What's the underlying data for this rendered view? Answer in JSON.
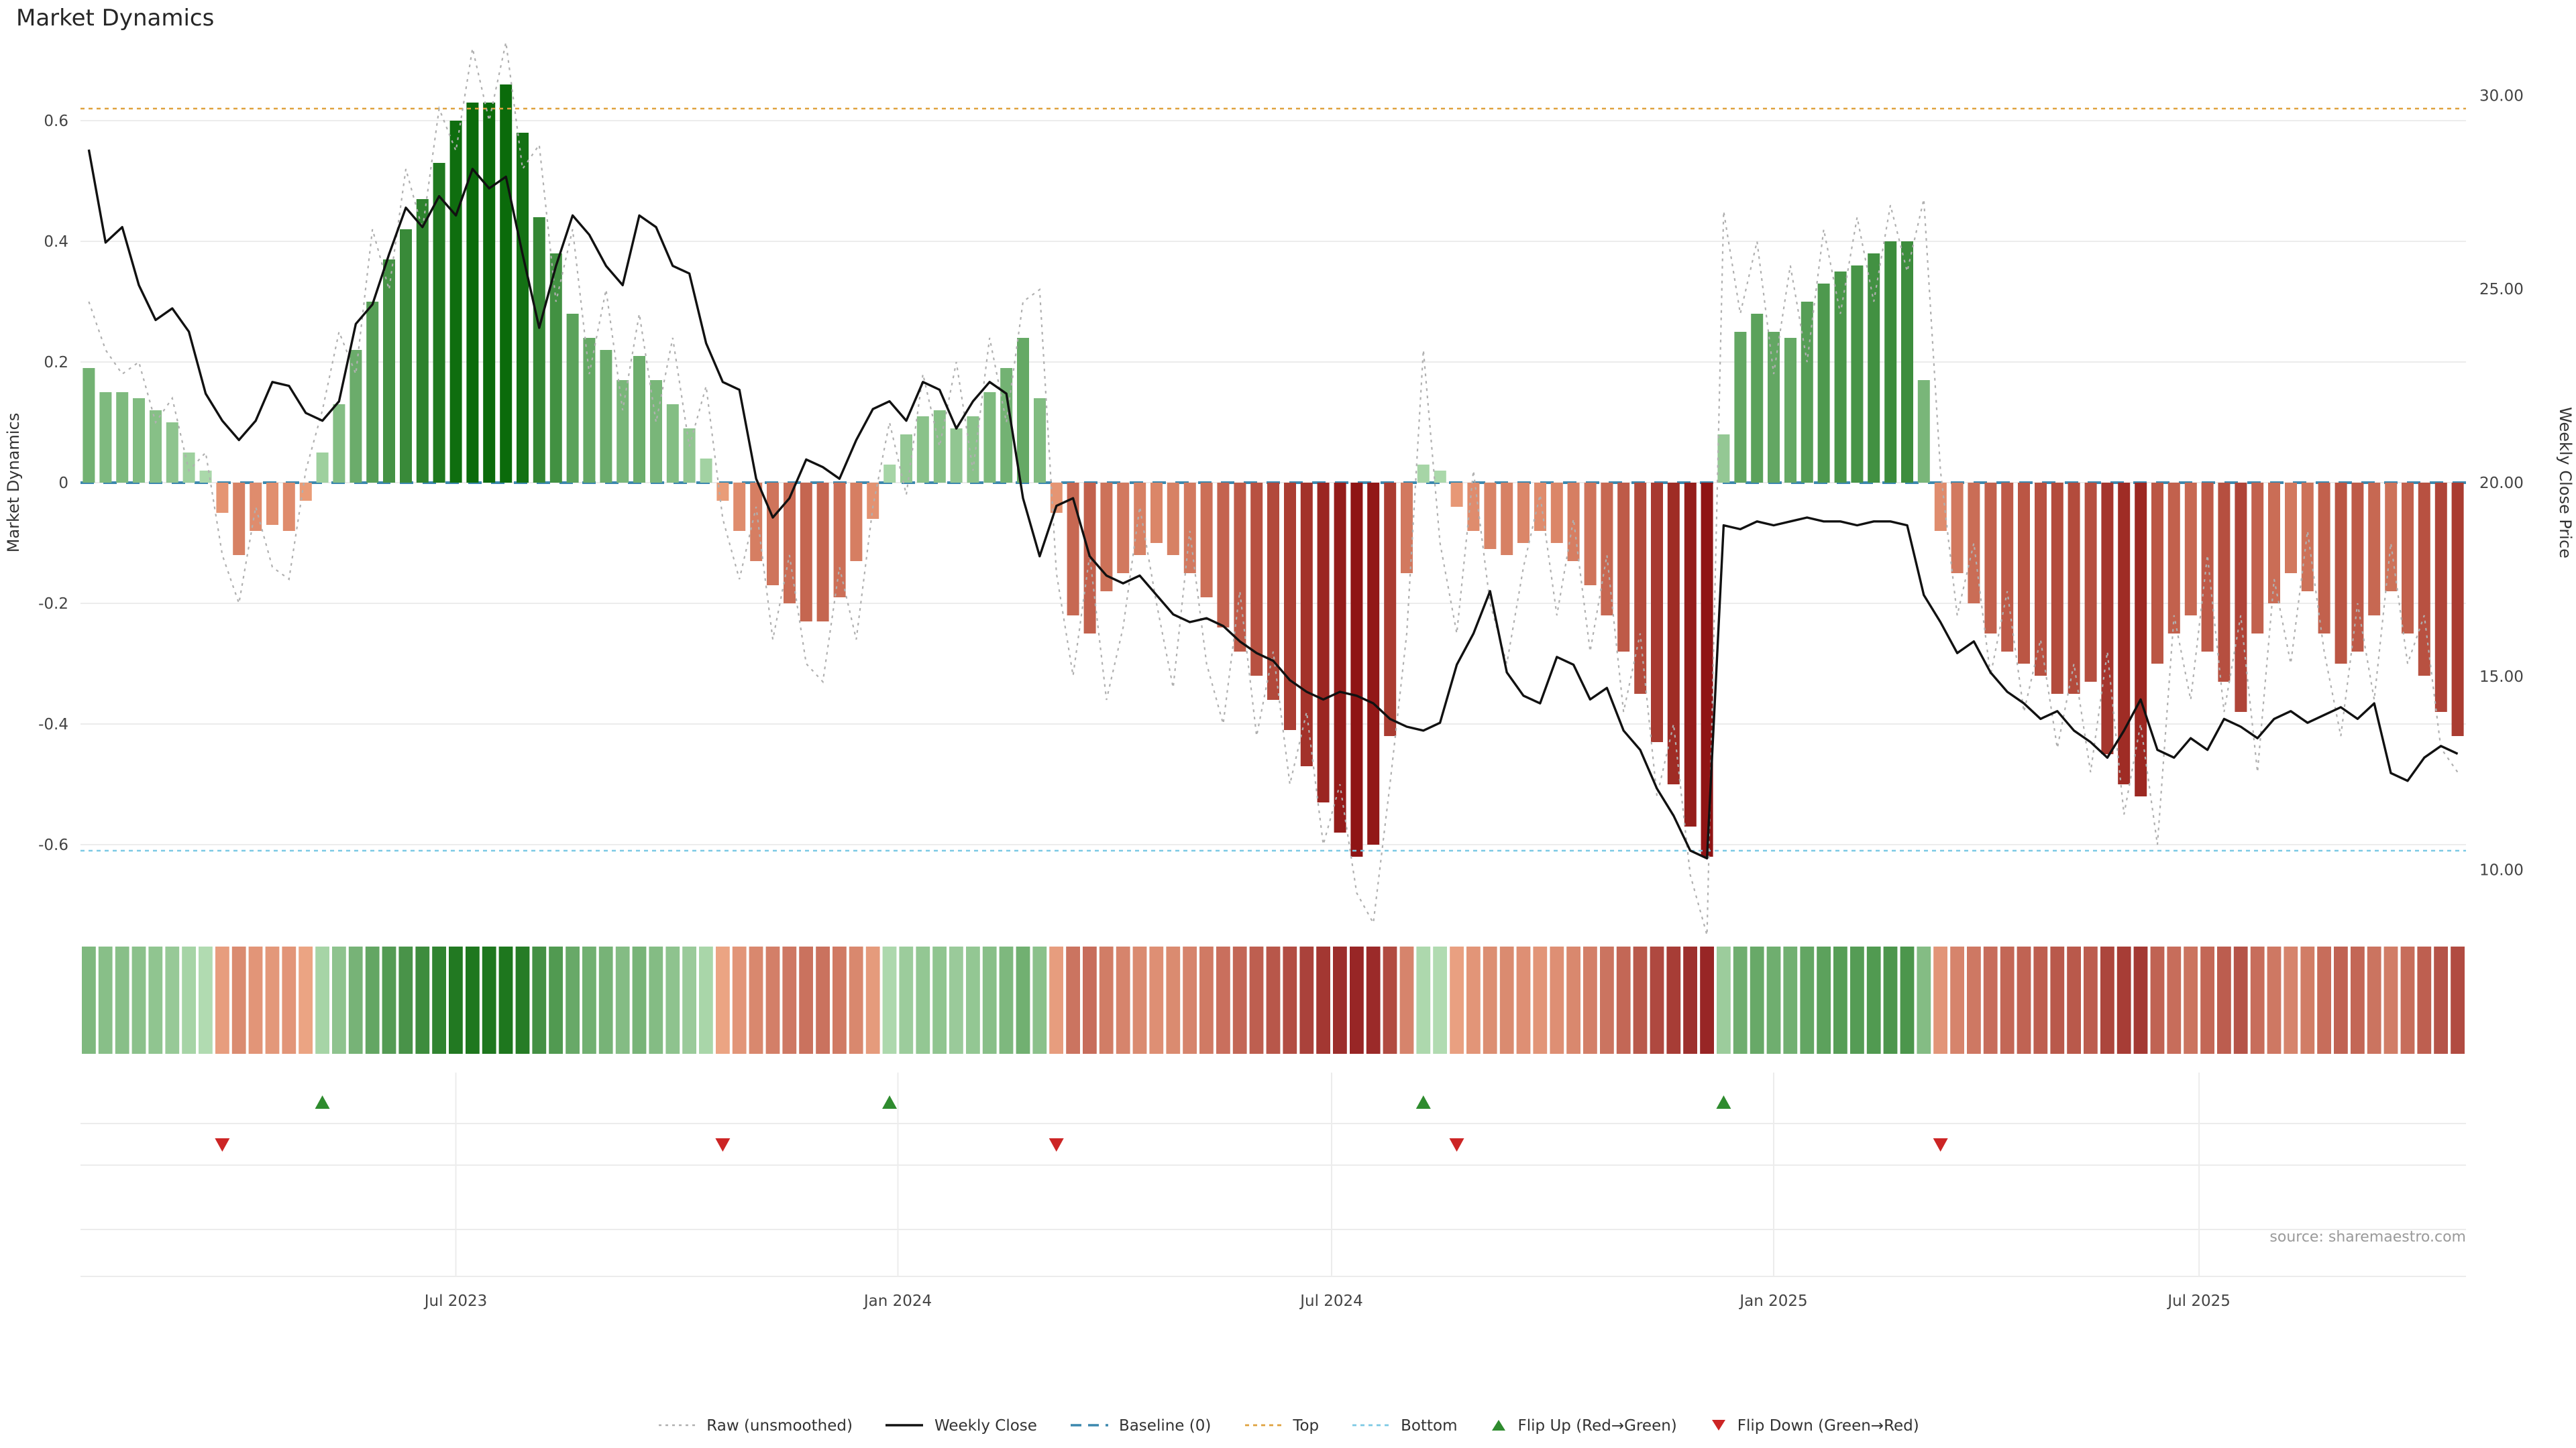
{
  "title": "Market Dynamics",
  "source_note": "source: sharemaestro.com",
  "axes": {
    "left_label": "Market Dynamics",
    "right_label": "Weekly Close Price",
    "left_ticks": [
      {
        "label": "0.6",
        "value": 0.6
      },
      {
        "label": "0.4",
        "value": 0.4
      },
      {
        "label": "0.2",
        "value": 0.2
      },
      {
        "label": "0",
        "value": 0
      },
      {
        "label": "-0.2",
        "value": -0.2
      },
      {
        "label": "-0.4",
        "value": -0.4
      },
      {
        "label": "-0.6",
        "value": -0.6
      }
    ],
    "right_ticks": [
      {
        "label": "30.00",
        "value": 30
      },
      {
        "label": "25.00",
        "value": 25
      },
      {
        "label": "20.00",
        "value": 20
      },
      {
        "label": "15.00",
        "value": 15
      },
      {
        "label": "10.00",
        "value": 10
      }
    ],
    "x_ticks": [
      {
        "label": "Jul 2023",
        "week": 22
      },
      {
        "label": "Jan 2024",
        "week": 48.5
      },
      {
        "label": "Jul 2024",
        "week": 74.5
      },
      {
        "label": "Jan 2025",
        "week": 101
      },
      {
        "label": "Jul 2025",
        "week": 126.5
      }
    ]
  },
  "colors": {
    "green_dark": "#0b6b0b",
    "green_light": "#b5dfb5",
    "red_dark": "#8f1414",
    "red_light": "#f2a982",
    "close_line": "#111111",
    "raw_line": "#b0b0b0",
    "baseline": "#3c88ae",
    "top_line": "#dfa23f",
    "bottom_line": "#7cc9e4",
    "flip_up": "#2e8b2e",
    "flip_down": "#cc2525",
    "grid": "#ececec",
    "tick_text": "#444444"
  },
  "legend": {
    "items": [
      {
        "label": "Raw (unsmoothed)",
        "swatch": "raw"
      },
      {
        "label": "Weekly Close",
        "swatch": "close"
      },
      {
        "label": "Baseline (0)",
        "swatch": "baseline"
      },
      {
        "label": "Top",
        "swatch": "top"
      },
      {
        "label": "Bottom",
        "swatch": "bottom"
      },
      {
        "label": "Flip Up (Red→Green)",
        "swatch": "flip_up"
      },
      {
        "label": "Flip Down (Green→Red)",
        "swatch": "flip_down"
      }
    ]
  },
  "chart_data": {
    "type": "bar+line",
    "title": "Market Dynamics",
    "x_unit": "week",
    "weeks_count": 143,
    "ylim_left": [
      -0.72,
      0.72
    ],
    "ylim_right": [
      8.8,
      31.2
    ],
    "grid": "horizontal",
    "thresholds": {
      "top": 0.62,
      "bottom": -0.61,
      "baseline": 0
    },
    "price_axis": {
      "dyn_zero_price": 20,
      "price_units_per_dyn": 15.58
    },
    "flip_up_weeks": [
      14,
      48,
      80,
      98
    ],
    "flip_down_weeks": [
      8,
      38,
      58,
      82,
      111
    ],
    "series": [
      {
        "name": "dynamics_smoothed",
        "type": "bar",
        "axis": "left",
        "values": [
          0.19,
          0.15,
          0.15,
          0.14,
          0.12,
          0.1,
          0.05,
          0.02,
          -0.05,
          -0.12,
          -0.08,
          -0.07,
          -0.08,
          -0.03,
          0.05,
          0.13,
          0.22,
          0.3,
          0.37,
          0.42,
          0.47,
          0.53,
          0.6,
          0.63,
          0.63,
          0.66,
          0.58,
          0.44,
          0.38,
          0.28,
          0.24,
          0.22,
          0.17,
          0.21,
          0.17,
          0.13,
          0.09,
          0.04,
          -0.03,
          -0.08,
          -0.13,
          -0.17,
          -0.2,
          -0.23,
          -0.23,
          -0.19,
          -0.13,
          -0.06,
          0.03,
          0.08,
          0.11,
          0.12,
          0.09,
          0.11,
          0.15,
          0.19,
          0.24,
          0.14,
          -0.05,
          -0.22,
          -0.25,
          -0.18,
          -0.15,
          -0.12,
          -0.1,
          -0.12,
          -0.15,
          -0.19,
          -0.24,
          -0.28,
          -0.32,
          -0.36,
          -0.41,
          -0.47,
          -0.53,
          -0.58,
          -0.62,
          -0.6,
          -0.42,
          -0.15,
          0.03,
          0.02,
          -0.04,
          -0.08,
          -0.11,
          -0.12,
          -0.1,
          -0.08,
          -0.1,
          -0.13,
          -0.17,
          -0.22,
          -0.28,
          -0.35,
          -0.43,
          -0.5,
          -0.57,
          -0.62,
          0.08,
          0.25,
          0.28,
          0.25,
          0.24,
          0.3,
          0.33,
          0.35,
          0.36,
          0.38,
          0.4,
          0.4,
          0.17,
          -0.08,
          -0.15,
          -0.2,
          -0.25,
          -0.28,
          -0.3,
          -0.32,
          -0.35,
          -0.35,
          -0.33,
          -0.45,
          -0.5,
          -0.52,
          -0.3,
          -0.25,
          -0.22,
          -0.28,
          -0.33,
          -0.38,
          -0.25,
          -0.2,
          -0.15,
          -0.18,
          -0.25,
          -0.3,
          -0.28,
          -0.22,
          -0.18,
          -0.25,
          -0.32,
          -0.38,
          -0.42
        ]
      },
      {
        "name": "raw_unsmoothed",
        "type": "line",
        "axis": "left",
        "values": [
          0.3,
          0.22,
          0.18,
          0.2,
          0.1,
          0.14,
          0.02,
          0.05,
          -0.12,
          -0.2,
          -0.04,
          -0.14,
          -0.16,
          0.02,
          0.12,
          0.25,
          0.18,
          0.42,
          0.32,
          0.52,
          0.42,
          0.62,
          0.55,
          0.72,
          0.6,
          0.73,
          0.52,
          0.56,
          0.3,
          0.42,
          0.18,
          0.32,
          0.12,
          0.28,
          0.1,
          0.24,
          0.06,
          0.16,
          -0.06,
          -0.16,
          -0.04,
          -0.26,
          -0.12,
          -0.3,
          -0.33,
          -0.14,
          -0.26,
          -0.04,
          0.1,
          -0.02,
          0.18,
          0.06,
          0.2,
          0.02,
          0.24,
          0.1,
          0.3,
          0.32,
          -0.15,
          -0.32,
          -0.12,
          -0.36,
          -0.24,
          -0.04,
          -0.2,
          -0.34,
          -0.08,
          -0.3,
          -0.4,
          -0.18,
          -0.42,
          -0.28,
          -0.5,
          -0.38,
          -0.6,
          -0.5,
          -0.68,
          -0.73,
          -0.5,
          -0.25,
          0.22,
          -0.1,
          -0.25,
          0.02,
          -0.2,
          -0.3,
          -0.14,
          -0.02,
          -0.22,
          -0.06,
          -0.28,
          -0.12,
          -0.38,
          -0.25,
          -0.52,
          -0.4,
          -0.65,
          -0.75,
          0.45,
          0.28,
          0.4,
          0.18,
          0.36,
          0.2,
          0.42,
          0.28,
          0.44,
          0.3,
          0.46,
          0.35,
          0.47,
          0.02,
          -0.22,
          -0.1,
          -0.32,
          -0.18,
          -0.38,
          -0.26,
          -0.44,
          -0.3,
          -0.48,
          -0.28,
          -0.55,
          -0.4,
          -0.6,
          -0.22,
          -0.36,
          -0.12,
          -0.38,
          -0.22,
          -0.48,
          -0.16,
          -0.3,
          -0.08,
          -0.28,
          -0.42,
          -0.2,
          -0.36,
          -0.1,
          -0.3,
          -0.22,
          -0.44,
          -0.48
        ]
      },
      {
        "name": "weekly_close",
        "type": "line",
        "axis": "right",
        "values": [
          28.6,
          26.2,
          26.6,
          25.1,
          24.2,
          24.5,
          23.9,
          22.3,
          21.6,
          21.1,
          21.6,
          22.6,
          22.5,
          21.8,
          21.6,
          22.1,
          24.1,
          24.6,
          25.9,
          27.1,
          26.6,
          27.4,
          26.9,
          28.1,
          27.6,
          27.9,
          25.9,
          24.0,
          25.6,
          26.9,
          26.4,
          25.6,
          25.1,
          26.9,
          26.6,
          25.6,
          25.4,
          23.6,
          22.6,
          22.4,
          20.1,
          19.1,
          19.6,
          20.6,
          20.4,
          20.1,
          21.1,
          21.9,
          22.1,
          21.6,
          22.6,
          22.4,
          21.4,
          22.1,
          22.6,
          22.3,
          19.6,
          18.1,
          19.4,
          19.6,
          18.1,
          17.6,
          17.4,
          17.6,
          17.1,
          16.6,
          16.4,
          16.5,
          16.3,
          15.9,
          15.6,
          15.4,
          14.9,
          14.6,
          14.4,
          14.6,
          14.5,
          14.3,
          13.9,
          13.7,
          13.6,
          13.8,
          15.3,
          16.1,
          17.2,
          15.1,
          14.5,
          14.3,
          15.5,
          15.3,
          14.4,
          14.7,
          13.6,
          13.1,
          12.1,
          11.4,
          10.5,
          10.3,
          18.9,
          18.8,
          19.0,
          18.9,
          19.0,
          19.1,
          19.0,
          19.0,
          18.9,
          19.0,
          19.0,
          18.9,
          17.1,
          16.4,
          15.6,
          15.9,
          15.1,
          14.6,
          14.3,
          13.9,
          14.1,
          13.6,
          13.3,
          12.9,
          13.6,
          14.4,
          13.1,
          12.9,
          13.4,
          13.1,
          13.9,
          13.7,
          13.4,
          13.9,
          14.1,
          13.8,
          14.0,
          14.2,
          13.9,
          14.3,
          12.5,
          12.3,
          12.9,
          13.2,
          13.0
        ]
      }
    ]
  }
}
